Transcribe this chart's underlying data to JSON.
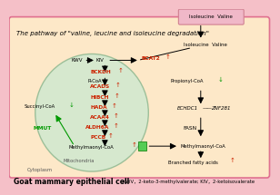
{
  "bg_outer": "#f5c0c8",
  "bg_cell": "#fde8c8",
  "bg_mito_ellipse": "#d0e8d0",
  "title": "The pathway of \"valine, leucine and isoleucine degradation\"",
  "title_fontsize": 5.0,
  "cell_label": "Goat mammary epithelial cell",
  "cell_label_fontsize": 5.5,
  "footnote": "KWV，2-keto-3-methylvalerate; KIV，2-ketoisovalerate",
  "footnote_fontsize": 3.8,
  "top_box_color": "#f0b8c8",
  "top_box_border": "#d08090",
  "cell_border": "#e07090",
  "mito_border": "#90b890"
}
